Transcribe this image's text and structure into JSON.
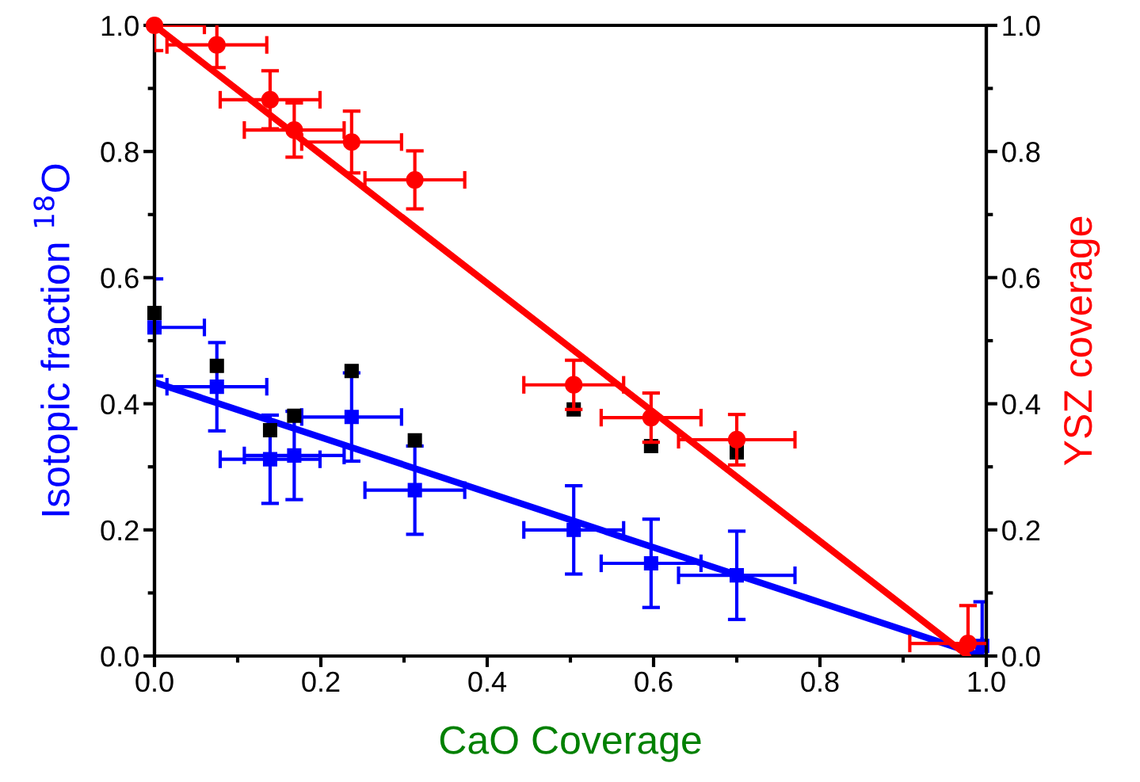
{
  "chart_data": {
    "type": "scatter",
    "xlabel": "CaO Coverage",
    "ylabel": "Isotopic fraction $^{18}$O",
    "y2label": "YSZ coverage",
    "xlim": [
      0,
      1
    ],
    "xticks": [
      {
        "value": 0,
        "label": "0.0"
      },
      0.2,
      0.4,
      0.6,
      0.8,
      {
        "value": 1,
        "label": "1.0"
      }
    ],
    "ylim": [
      0,
      1
    ],
    "yticks": [
      {
        "value": 0,
        "label": "0.0"
      },
      0.2,
      0.4,
      0.6,
      0.8,
      {
        "value": 1,
        "label": "1.0"
      }
    ],
    "y2lim": [
      0,
      1
    ],
    "y2ticks": [
      {
        "value": 0,
        "label": "0.0"
      },
      0.2,
      0.4,
      0.6,
      0.8,
      {
        "value": 1,
        "label": "1.0"
      }
    ],
    "grid": false,
    "legend": false,
    "series": [
      {
        "color": "#000000",
        "marker": "square",
        "x": [
          0.0,
          0.075,
          0.139,
          0.168,
          0.237,
          0.313,
          0.504,
          0.597,
          0.7
        ],
        "values": [
          0.544,
          0.46,
          0.358,
          0.381,
          0.452,
          0.342,
          0.391,
          0.333,
          0.323
        ]
      },
      {
        "color": "#0000ff",
        "marker": "square",
        "x": [
          0.0,
          0.075,
          0.139,
          0.168,
          0.237,
          0.313,
          0.504,
          0.597,
          0.7,
          0.995
        ],
        "values": [
          0.521,
          0.427,
          0.312,
          0.318,
          0.379,
          0.263,
          0.2,
          0.147,
          0.128,
          0.016
        ],
        "errors": [
          0.077,
          0.07,
          0.07,
          0.07,
          0.07,
          0.07,
          0.07,
          0.07,
          0.07,
          0.07
        ],
        "xerrors": [
          0.06,
          0.06,
          0.06,
          0.06,
          0.06,
          0.06,
          0.06,
          0.06,
          0.07,
          null
        ]
      },
      {
        "type": "line",
        "color": "#0000ff",
        "marker": "none",
        "x": [
          0.0,
          0.995
        ],
        "values": [
          0.434,
          0.0
        ]
      },
      {
        "axis": "y2",
        "color": "#ff0000",
        "marker": "circle",
        "x": [
          0.0,
          0.075,
          0.139,
          0.168,
          0.237,
          0.313,
          0.504,
          0.597,
          0.7,
          0.978
        ],
        "values": [
          1.0,
          0.969,
          0.882,
          0.834,
          0.815,
          0.755,
          0.43,
          0.378,
          0.343,
          0.02
        ],
        "errors": [
          0.04,
          0.036,
          0.046,
          0.043,
          0.049,
          0.046,
          0.039,
          0.039,
          0.04,
          0.06
        ],
        "xerrors": [
          0.06,
          0.06,
          0.06,
          0.06,
          0.06,
          0.06,
          0.06,
          0.06,
          0.07,
          0.07
        ]
      },
      {
        "type": "line",
        "axis": "y2",
        "color": "#ff0000",
        "marker": "none",
        "x": [
          0.0,
          0.978
        ],
        "values": [
          1.0,
          0.0
        ]
      }
    ]
  }
}
